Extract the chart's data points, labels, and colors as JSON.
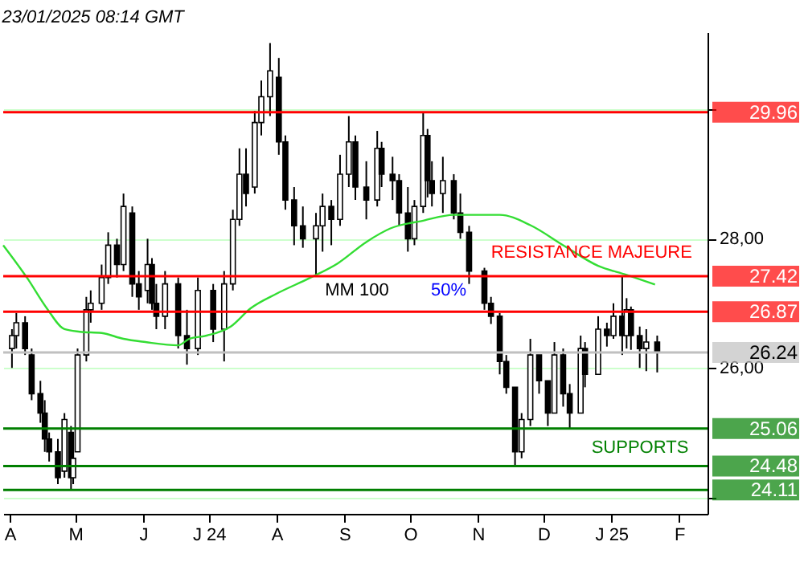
{
  "chart_data": {
    "type": "candlestick",
    "title": "23/01/2025 08:14 GMT",
    "xlim": [
      "2024-03-29",
      "2025-02-14"
    ],
    "xticks": [
      {
        "value": "2024-04-01",
        "label": "A"
      },
      {
        "value": "2024-05-01",
        "label": "M"
      },
      {
        "value": "2024-06-01",
        "label": "J"
      },
      {
        "value": "2024-07-01",
        "label": "J 24"
      },
      {
        "value": "2024-08-01",
        "label": "A"
      },
      {
        "value": "2024-09-01",
        "label": "S"
      },
      {
        "value": "2024-10-01",
        "label": "O"
      },
      {
        "value": "2024-11-01",
        "label": "N"
      },
      {
        "value": "2024-12-01",
        "label": "D"
      },
      {
        "value": "2025-01-01",
        "label": "J 25"
      },
      {
        "value": "2025-02-01",
        "label": "F"
      }
    ],
    "ylim": [
      23.74,
      31.2
    ],
    "yticks": [
      {
        "value": 24,
        "label": null
      },
      {
        "value": 26,
        "label": "26,00"
      },
      {
        "value": 28,
        "label": "28,00"
      },
      {
        "value": 30,
        "label": null
      }
    ],
    "grid": "y",
    "series": [
      {
        "color": "#000000",
        "x": [
          "2024-04-02",
          "2024-04-04",
          "2024-04-08",
          "2024-04-11",
          "2024-04-15",
          "2024-04-17",
          "2024-04-19",
          "2024-04-23",
          "2024-04-26",
          "2024-04-29",
          "2024-04-30",
          "2024-05-02",
          "2024-05-06",
          "2024-05-08",
          "2024-05-13",
          "2024-05-16",
          "2024-05-20",
          "2024-05-23",
          "2024-05-27",
          "2024-05-30",
          "2024-06-03",
          "2024-06-05",
          "2024-06-07",
          "2024-06-11",
          "2024-06-17",
          "2024-06-21",
          "2024-06-26",
          "2024-07-03",
          "2024-07-08",
          "2024-07-12",
          "2024-07-15",
          "2024-07-18",
          "2024-07-22",
          "2024-07-25",
          "2024-07-29",
          "2024-08-02",
          "2024-08-05",
          "2024-08-09",
          "2024-08-13",
          "2024-08-19",
          "2024-08-22",
          "2024-08-26",
          "2024-08-30",
          "2024-09-03",
          "2024-09-06",
          "2024-09-11",
          "2024-09-16",
          "2024-09-18",
          "2024-09-23",
          "2024-09-26",
          "2024-09-30",
          "2024-10-03",
          "2024-10-07",
          "2024-10-09",
          "2024-10-11",
          "2024-10-16",
          "2024-10-21",
          "2024-10-24",
          "2024-10-28",
          "2024-11-04",
          "2024-11-07",
          "2024-11-11",
          "2024-11-14",
          "2024-11-18",
          "2024-11-21",
          "2024-11-25",
          "2024-11-29",
          "2024-12-03",
          "2024-12-06",
          "2024-12-10",
          "2024-12-13",
          "2024-12-18",
          "2024-12-20",
          "2024-12-26",
          "2024-12-30",
          "2025-01-02",
          "2025-01-06",
          "2025-01-08",
          "2025-01-10",
          "2025-01-14",
          "2025-01-17",
          "2025-01-22"
        ],
        "ohlc": [
          [
            26.3,
            26.6,
            26.0,
            26.5
          ],
          [
            26.5,
            26.85,
            26.3,
            26.7
          ],
          [
            26.7,
            26.8,
            26.2,
            26.3
          ],
          [
            26.2,
            26.3,
            25.5,
            25.6
          ],
          [
            25.6,
            25.8,
            25.15,
            25.3
          ],
          [
            25.3,
            25.5,
            24.7,
            24.9
          ],
          [
            24.9,
            25.0,
            24.55,
            24.7
          ],
          [
            24.7,
            24.9,
            24.2,
            24.3
          ],
          [
            24.4,
            25.3,
            24.3,
            25.2
          ],
          [
            25.0,
            25.1,
            24.11,
            24.3
          ],
          [
            24.3,
            24.7,
            24.2,
            24.6
          ],
          [
            24.7,
            26.3,
            24.7,
            26.2
          ],
          [
            26.2,
            27.1,
            26.1,
            26.9
          ],
          [
            26.9,
            27.2,
            26.7,
            27.0
          ],
          [
            27.0,
            27.6,
            26.9,
            27.4
          ],
          [
            27.4,
            28.1,
            27.3,
            27.9
          ],
          [
            27.9,
            28.0,
            27.4,
            27.6
          ],
          [
            27.6,
            28.7,
            27.5,
            28.5
          ],
          [
            28.4,
            28.5,
            27.1,
            27.3
          ],
          [
            27.3,
            27.5,
            26.9,
            27.1
          ],
          [
            27.2,
            28.0,
            27.0,
            27.6
          ],
          [
            27.6,
            27.7,
            26.9,
            27.0
          ],
          [
            27.0,
            27.3,
            26.6,
            26.8
          ],
          [
            26.8,
            27.5,
            26.6,
            27.3
          ],
          [
            27.3,
            27.4,
            26.3,
            26.5
          ],
          [
            26.5,
            26.9,
            26.05,
            26.3
          ],
          [
            26.3,
            27.4,
            26.2,
            27.2
          ],
          [
            27.2,
            27.3,
            26.4,
            26.6
          ],
          [
            26.6,
            27.5,
            26.1,
            27.3
          ],
          [
            27.3,
            28.45,
            27.2,
            28.3
          ],
          [
            28.3,
            29.4,
            28.2,
            29.0
          ],
          [
            29.0,
            29.4,
            28.5,
            28.7
          ],
          [
            28.8,
            29.98,
            28.7,
            29.8
          ],
          [
            29.8,
            30.45,
            29.6,
            30.2
          ],
          [
            30.2,
            31.03,
            29.9,
            30.6
          ],
          [
            30.5,
            30.8,
            29.3,
            29.5
          ],
          [
            29.5,
            29.6,
            28.45,
            28.6
          ],
          [
            28.6,
            28.8,
            27.9,
            28.2
          ],
          [
            28.2,
            28.5,
            27.86,
            28.0
          ],
          [
            28.0,
            28.4,
            27.42,
            28.2
          ],
          [
            28.2,
            28.7,
            27.8,
            28.5
          ],
          [
            28.5,
            28.6,
            27.9,
            28.3
          ],
          [
            28.3,
            29.3,
            28.2,
            29.0
          ],
          [
            29.0,
            29.9,
            28.8,
            29.5
          ],
          [
            29.5,
            29.6,
            28.6,
            28.8
          ],
          [
            28.8,
            29.2,
            28.3,
            28.6
          ],
          [
            28.6,
            29.67,
            28.5,
            29.4
          ],
          [
            29.4,
            29.5,
            28.8,
            29.0
          ],
          [
            29.0,
            29.27,
            28.6,
            28.9
          ],
          [
            28.9,
            29.0,
            28.2,
            28.4
          ],
          [
            28.4,
            28.8,
            27.8,
            28.0
          ],
          [
            28.0,
            28.6,
            27.9,
            28.5
          ],
          [
            28.5,
            29.96,
            28.4,
            29.6
          ],
          [
            29.6,
            29.7,
            28.64,
            28.9
          ],
          [
            28.9,
            29.2,
            28.5,
            28.7
          ],
          [
            28.7,
            29.27,
            28.4,
            28.9
          ],
          [
            28.9,
            29.0,
            28.3,
            28.4
          ],
          [
            28.4,
            28.7,
            28.0,
            28.1
          ],
          [
            28.1,
            28.2,
            27.3,
            27.5
          ],
          [
            27.5,
            27.55,
            26.9,
            27.0
          ],
          [
            27.0,
            27.1,
            26.68,
            26.8
          ],
          [
            26.8,
            26.85,
            25.9,
            26.1
          ],
          [
            26.1,
            26.2,
            25.6,
            25.7
          ],
          [
            25.7,
            25.7,
            24.48,
            24.7
          ],
          [
            24.7,
            25.3,
            24.6,
            25.2
          ],
          [
            25.2,
            26.45,
            25.1,
            26.2
          ],
          [
            26.2,
            26.2,
            25.6,
            25.8
          ],
          [
            25.8,
            25.8,
            25.1,
            25.3
          ],
          [
            25.3,
            26.4,
            25.3,
            26.2
          ],
          [
            26.2,
            26.3,
            25.4,
            25.6
          ],
          [
            25.6,
            25.75,
            25.06,
            25.3
          ],
          [
            25.3,
            26.5,
            25.3,
            26.3
          ],
          [
            26.3,
            26.4,
            25.7,
            25.9
          ],
          [
            25.9,
            26.8,
            25.9,
            26.6
          ],
          [
            26.6,
            26.7,
            26.33,
            26.5
          ],
          [
            26.5,
            27.0,
            26.45,
            26.8
          ],
          [
            26.8,
            27.42,
            26.2,
            26.5
          ],
          [
            26.5,
            27.08,
            26.3,
            26.9
          ],
          [
            26.9,
            26.95,
            26.28,
            26.5
          ],
          [
            26.5,
            26.64,
            26.0,
            26.3
          ],
          [
            26.3,
            26.6,
            25.95,
            26.4
          ],
          [
            26.4,
            26.5,
            25.93,
            26.24
          ]
        ]
      },
      {
        "type": "line",
        "color": "#33dd33",
        "x": [
          "2024-03-29",
          "2024-04-09",
          "2024-04-18",
          "2024-04-26",
          "2024-05-03",
          "2024-05-13",
          "2024-05-23",
          "2024-06-02",
          "2024-06-17",
          "2024-06-22",
          "2024-06-30",
          "2024-07-11",
          "2024-07-20",
          "2024-08-01",
          "2024-08-16",
          "2024-08-29",
          "2024-09-11",
          "2024-09-22",
          "2024-10-07",
          "2024-10-21",
          "2024-11-11",
          "2024-11-25",
          "2024-12-10",
          "2024-12-26",
          "2025-01-08",
          "2025-01-21"
        ],
        "values": [
          27.9,
          27.39,
          26.92,
          26.6,
          26.56,
          26.54,
          26.45,
          26.4,
          26.35,
          26.45,
          26.5,
          26.64,
          26.92,
          27.15,
          27.39,
          27.62,
          27.95,
          28.16,
          28.28,
          28.37,
          28.37,
          28.21,
          27.9,
          27.58,
          27.44,
          27.29
        ]
      }
    ],
    "ref_lines": [
      {
        "axis": "y",
        "value": 29.96,
        "label": "29.96",
        "color": "#ff0000"
      },
      {
        "axis": "y",
        "value": 27.42,
        "label": "27.42",
        "color": "#ff0000"
      },
      {
        "axis": "y",
        "value": 26.87,
        "label": "26.87",
        "color": "#ff0000"
      },
      {
        "axis": "y",
        "value": 26.24,
        "label": "26.24",
        "color": "#c0c0c0"
      },
      {
        "axis": "y",
        "value": 25.06,
        "label": "25.06",
        "color": "#007f00"
      },
      {
        "axis": "y",
        "value": 24.48,
        "label": "24.48",
        "color": "#007f00"
      },
      {
        "axis": "y",
        "value": 24.11,
        "label": "24.11",
        "color": "#007f00"
      }
    ],
    "annotations": [
      {
        "text": "RESISTANCE MAJEURE",
        "x": "2024-12-23",
        "y": 27.78
      },
      "SUPPORTS",
      "MM 100",
      "50%"
    ]
  }
}
